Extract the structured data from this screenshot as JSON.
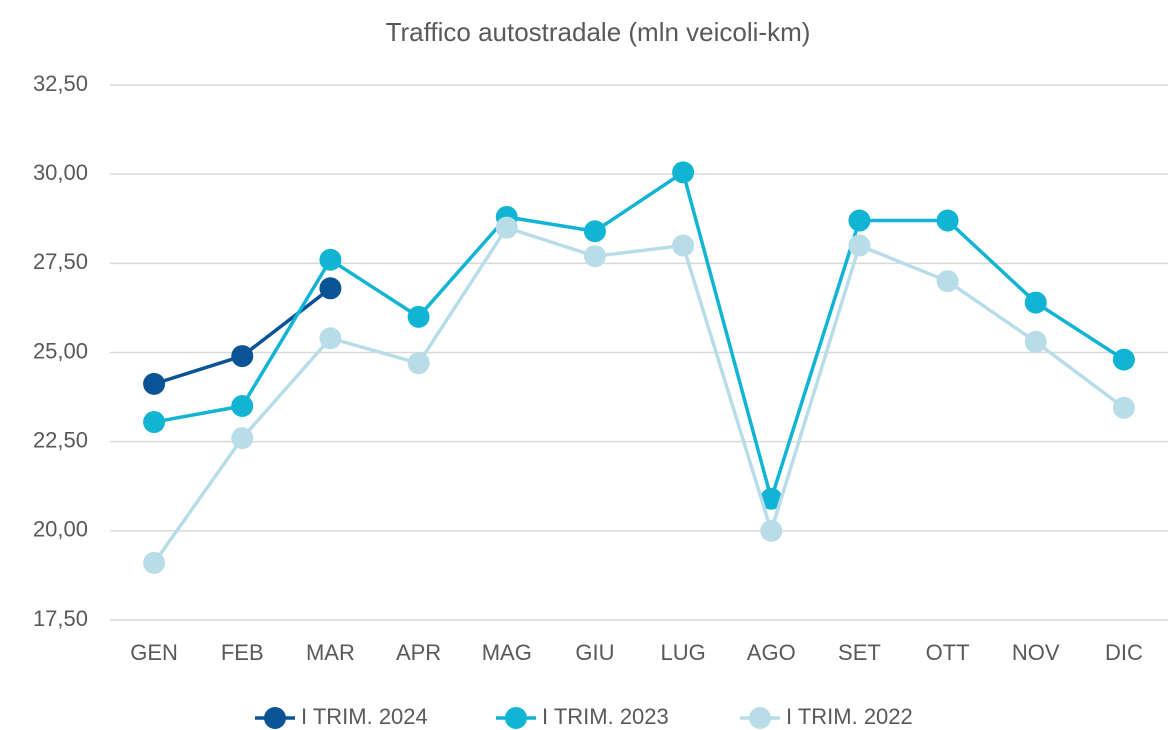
{
  "chart_data": {
    "type": "line",
    "title": "Traffico autostradale (mln veicoli-km)",
    "categories": [
      "GEN",
      "FEB",
      "MAR",
      "APR",
      "MAG",
      "GIU",
      "LUG",
      "AGO",
      "SET",
      "OTT",
      "NOV",
      "DIC"
    ],
    "series": [
      {
        "name": "I TRIM. 2024",
        "color": "#0a5496",
        "values": [
          24.12,
          24.9,
          26.8,
          null,
          null,
          null,
          null,
          null,
          null,
          null,
          null,
          null
        ]
      },
      {
        "name": "I TRIM. 2023",
        "color": "#12b4d4",
        "values": [
          23.05,
          23.5,
          27.6,
          26.0,
          28.8,
          28.4,
          30.05,
          20.9,
          28.7,
          28.7,
          26.4,
          24.8
        ]
      },
      {
        "name": "I TRIM. 2022",
        "color": "#b8dde9",
        "values": [
          19.1,
          22.6,
          25.4,
          24.7,
          28.5,
          27.7,
          28.0,
          20.0,
          28.0,
          27.0,
          25.3,
          23.45
        ]
      }
    ],
    "ylim": [
      17.5,
      32.5
    ],
    "yticks": [
      {
        "value": 17.5,
        "label": "17,50"
      },
      {
        "value": 20,
        "label": "20,00"
      },
      {
        "value": 22.5,
        "label": "22,50"
      },
      {
        "value": 25,
        "label": "25,00"
      },
      {
        "value": 27.5,
        "label": "27,50"
      },
      {
        "value": 30,
        "label": "30,00"
      },
      {
        "value": 32.5,
        "label": "32,50"
      }
    ],
    "grid": true,
    "legend": "bottom"
  }
}
